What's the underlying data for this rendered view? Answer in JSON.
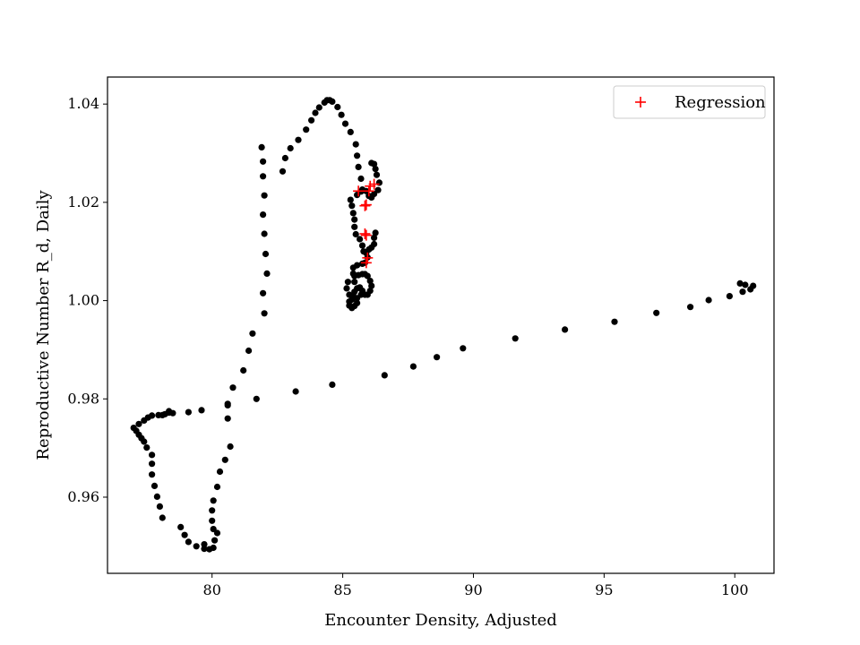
{
  "chart_data": {
    "type": "scatter",
    "title": "",
    "xlabel": "Encounter Density, Adjusted",
    "ylabel": "Reproductive Number R_d, Daily",
    "xlim": [
      76.0,
      101.5
    ],
    "ylim": [
      0.9445,
      1.0455
    ],
    "xticks": [
      80,
      85,
      90,
      95,
      100
    ],
    "yticks": [
      0.96,
      0.98,
      1.0,
      1.02,
      1.04
    ],
    "xtick_labels": [
      "80",
      "85",
      "90",
      "95",
      "100"
    ],
    "ytick_labels": [
      "0.96",
      "0.98",
      "1.00",
      "1.02",
      "1.04"
    ],
    "grid": false,
    "legend_position": "upper right",
    "series": [
      {
        "marker": "dot",
        "color": "#000000",
        "points": [
          [
            100.7,
            1.003
          ],
          [
            100.6,
            1.0023
          ],
          [
            100.4,
            1.0032
          ],
          [
            100.2,
            1.0035
          ],
          [
            100.3,
            1.0018
          ],
          [
            99.8,
            1.0009
          ],
          [
            99.0,
            1.0001
          ],
          [
            98.3,
            0.9987
          ],
          [
            97.0,
            0.9975
          ],
          [
            95.4,
            0.9957
          ],
          [
            93.5,
            0.9941
          ],
          [
            91.6,
            0.9923
          ],
          [
            89.6,
            0.9903
          ],
          [
            88.6,
            0.9885
          ],
          [
            87.7,
            0.9866
          ],
          [
            86.6,
            0.9848
          ],
          [
            84.6,
            0.9829
          ],
          [
            83.2,
            0.9815
          ],
          [
            81.7,
            0.98
          ],
          [
            80.6,
            0.979
          ],
          [
            80.6,
            0.976
          ],
          [
            80.7,
            0.9703
          ],
          [
            80.5,
            0.9676
          ],
          [
            80.3,
            0.9652
          ],
          [
            80.2,
            0.9621
          ],
          [
            80.05,
            0.9593
          ],
          [
            80.0,
            0.9573
          ],
          [
            80.0,
            0.9552
          ],
          [
            80.05,
            0.9535
          ],
          [
            80.2,
            0.9527
          ],
          [
            80.1,
            0.9512
          ],
          [
            80.05,
            0.9497
          ],
          [
            79.9,
            0.9494
          ],
          [
            79.7,
            0.9495
          ],
          [
            79.7,
            0.9504
          ],
          [
            79.4,
            0.95
          ],
          [
            79.1,
            0.9509
          ],
          [
            78.95,
            0.9523
          ],
          [
            78.8,
            0.9539
          ],
          [
            78.1,
            0.9558
          ],
          [
            78.0,
            0.9581
          ],
          [
            77.9,
            0.9601
          ],
          [
            77.8,
            0.9623
          ],
          [
            77.7,
            0.9646
          ],
          [
            77.7,
            0.9668
          ],
          [
            77.7,
            0.9686
          ],
          [
            77.5,
            0.9701
          ],
          [
            77.4,
            0.9713
          ],
          [
            77.3,
            0.972
          ],
          [
            77.2,
            0.9727
          ],
          [
            77.1,
            0.9735
          ],
          [
            77.0,
            0.9741
          ],
          [
            77.2,
            0.9749
          ],
          [
            77.4,
            0.9756
          ],
          [
            77.55,
            0.9762
          ],
          [
            77.7,
            0.9766
          ],
          [
            77.95,
            0.9767
          ],
          [
            78.1,
            0.9767
          ],
          [
            78.2,
            0.9769
          ],
          [
            78.35,
            0.9772
          ],
          [
            78.5,
            0.9771
          ],
          [
            78.35,
            0.9775
          ],
          [
            79.1,
            0.9773
          ],
          [
            79.6,
            0.9777
          ],
          [
            80.6,
            0.9787
          ],
          [
            80.8,
            0.9823
          ],
          [
            81.2,
            0.9858
          ],
          [
            81.4,
            0.9898
          ],
          [
            81.55,
            0.9933
          ],
          [
            82.0,
            0.9974
          ],
          [
            81.95,
            1.0015
          ],
          [
            82.1,
            1.0055
          ],
          [
            82.05,
            1.0095
          ],
          [
            82.0,
            1.0136
          ],
          [
            81.95,
            1.0175
          ],
          [
            82.0,
            1.0214
          ],
          [
            81.95,
            1.0253
          ],
          [
            81.95,
            1.0283
          ],
          [
            81.9,
            1.0312
          ],
          [
            82.7,
            1.0263
          ],
          [
            82.8,
            1.029
          ],
          [
            83.0,
            1.031
          ],
          [
            83.3,
            1.0327
          ],
          [
            83.6,
            1.0348
          ],
          [
            83.8,
            1.0367
          ],
          [
            83.95,
            1.0382
          ],
          [
            84.1,
            1.0393
          ],
          [
            84.3,
            1.0403
          ],
          [
            84.4,
            1.0408
          ],
          [
            84.5,
            1.0408
          ],
          [
            84.6,
            1.0405
          ],
          [
            84.8,
            1.0394
          ],
          [
            84.95,
            1.0378
          ],
          [
            85.1,
            1.036
          ],
          [
            85.3,
            1.0343
          ],
          [
            85.5,
            1.0318
          ],
          [
            85.55,
            1.0295
          ],
          [
            85.6,
            1.0272
          ],
          [
            85.7,
            1.0248
          ],
          [
            85.75,
            1.0226
          ],
          [
            85.9,
            1.0223
          ],
          [
            86.0,
            1.0213
          ],
          [
            86.1,
            1.021
          ],
          [
            86.2,
            1.0217
          ],
          [
            86.35,
            1.0225
          ],
          [
            86.4,
            1.024
          ],
          [
            86.3,
            1.0256
          ],
          [
            86.25,
            1.0268
          ],
          [
            86.2,
            1.0278
          ],
          [
            86.1,
            1.028
          ],
          [
            85.7,
            1.0222
          ],
          [
            85.55,
            1.0215
          ],
          [
            85.3,
            1.0205
          ],
          [
            85.35,
            1.0193
          ],
          [
            85.4,
            1.0178
          ],
          [
            85.45,
            1.0165
          ],
          [
            85.45,
            1.015
          ],
          [
            85.5,
            1.0135
          ],
          [
            85.65,
            1.0125
          ],
          [
            85.75,
            1.0112
          ],
          [
            85.8,
            1.01
          ],
          [
            85.9,
            1.0097
          ],
          [
            86.0,
            1.0104
          ],
          [
            86.1,
            1.0108
          ],
          [
            86.2,
            1.0115
          ],
          [
            86.2,
            1.0128
          ],
          [
            86.25,
            1.0138
          ],
          [
            85.95,
            1.0088
          ],
          [
            85.85,
            1.0077
          ],
          [
            85.75,
            1.0075
          ],
          [
            85.55,
            1.0072
          ],
          [
            85.4,
            1.0067
          ],
          [
            85.4,
            1.0055
          ],
          [
            85.45,
            1.005
          ],
          [
            85.6,
            1.0052
          ],
          [
            85.75,
            1.0054
          ],
          [
            85.85,
            1.0054
          ],
          [
            85.95,
            1.005
          ],
          [
            86.05,
            1.004
          ],
          [
            86.1,
            1.003
          ],
          [
            86.05,
            1.002
          ],
          [
            85.95,
            1.0012
          ],
          [
            85.85,
            1.0012
          ],
          [
            85.75,
            1.002
          ],
          [
            85.65,
            1.0027
          ],
          [
            85.55,
            1.0025
          ],
          [
            85.45,
            1.0018
          ],
          [
            85.4,
            1.001
          ],
          [
            85.35,
            1.0002
          ],
          [
            85.25,
            0.9998
          ],
          [
            85.25,
            0.999
          ],
          [
            85.35,
            0.9985
          ],
          [
            85.45,
            0.9989
          ],
          [
            85.55,
            0.9995
          ],
          [
            85.45,
            1.0038
          ],
          [
            85.2,
            1.0038
          ],
          [
            85.15,
            1.0025
          ],
          [
            85.25,
            1.0012
          ],
          [
            85.55,
            1.0005
          ],
          [
            85.7,
            1.0012
          ]
        ]
      },
      {
        "name": "Regression",
        "marker": "plus",
        "color": "#ff0000",
        "points": [
          [
            85.6,
            1.0223
          ],
          [
            86.0,
            1.0223
          ],
          [
            86.2,
            1.0237
          ],
          [
            86.05,
            1.0233
          ],
          [
            85.9,
            1.0195
          ],
          [
            85.85,
            1.0193
          ],
          [
            85.85,
            1.0136
          ],
          [
            85.9,
            1.0133
          ],
          [
            85.95,
            1.0087
          ],
          [
            85.9,
            1.0077
          ]
        ]
      }
    ]
  }
}
